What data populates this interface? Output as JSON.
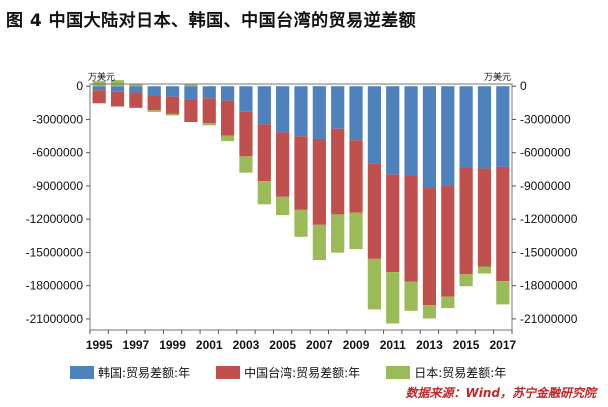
{
  "figure_title": "图 4    中国大陆对日本、韩国、中国台湾的贸易逆差额",
  "unit_left": "万美元",
  "unit_right": "万美元",
  "source": "数据来源：Wind，苏宁金融研究院",
  "colors": {
    "korea": "#4f81bd",
    "taiwan": "#c0504d",
    "japan": "#9bbb59"
  },
  "chart_data": {
    "type": "bar",
    "stacked": true,
    "years": [
      "1995",
      "1996",
      "1997",
      "1998",
      "1999",
      "2000",
      "2001",
      "2002",
      "2003",
      "2004",
      "2005",
      "2006",
      "2007",
      "2008",
      "2009",
      "2010",
      "2011",
      "2012",
      "2013",
      "2014",
      "2015",
      "2016",
      "2017"
    ],
    "x_tick_labels": [
      "1995",
      "1997",
      "1999",
      "2001",
      "2003",
      "2005",
      "2007",
      "2009",
      "2011",
      "2013",
      "2015",
      "2017"
    ],
    "series": [
      {
        "name": "韩国:贸易差额:年",
        "key": "korea",
        "values": [
          -360000,
          -500000,
          -570000,
          -880000,
          -940000,
          -1190000,
          -1090000,
          -1300000,
          -2300000,
          -3440000,
          -4170000,
          -4520000,
          -4760000,
          -3830000,
          -4870000,
          -6960000,
          -7980000,
          -8060000,
          -9190000,
          -9010000,
          -7340000,
          -7420000,
          -7280000
        ]
      },
      {
        "name": "中国台湾:贸易差额:年",
        "key": "taiwan",
        "values": [
          -1180000,
          -1330000,
          -1380000,
          -1270000,
          -1560000,
          -2040000,
          -2230000,
          -3150000,
          -4030000,
          -5130000,
          -5810000,
          -6640000,
          -7750000,
          -7740000,
          -6530000,
          -8620000,
          -8800000,
          -9590000,
          -10570000,
          -9980000,
          -9630000,
          -8850000,
          -10310000
        ]
      },
      {
        "name": "日本:贸易差额:年",
        "key": "japan",
        "values": [
          460000,
          550000,
          170000,
          -170000,
          -140000,
          150000,
          -210000,
          -500000,
          -1470000,
          -2090000,
          -1650000,
          -2430000,
          -3180000,
          -3450000,
          -3300000,
          -4560000,
          -4630000,
          -2620000,
          -1200000,
          -1030000,
          -1080000,
          -630000,
          -2100000
        ]
      }
    ],
    "ylim": [
      -22000000,
      200000
    ],
    "y_ticks": [
      0,
      -3000000,
      -6000000,
      -9000000,
      -12000000,
      -15000000,
      -18000000,
      -21000000
    ],
    "legend_position": "bottom"
  }
}
